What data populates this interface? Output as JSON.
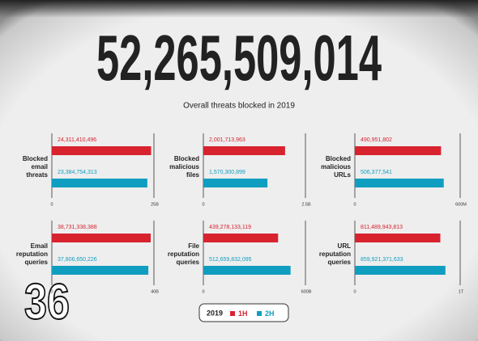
{
  "headline": "52,265,509,014",
  "subtitle": "Overall threats blocked in 2019",
  "legend_title": "2019",
  "page_number": "36",
  "chart_data": [
    {
      "type": "bar",
      "title_lines": [
        "Blocked",
        "email",
        "threats"
      ],
      "series": [
        {
          "name": "1H",
          "color": "#d8232f",
          "values": [
            24311410496
          ],
          "value_labels": [
            "24,311,410,496"
          ]
        },
        {
          "name": "2H",
          "color": "#109ec0",
          "values": [
            23384754313
          ],
          "value_labels": [
            "23,384,754,313"
          ]
        }
      ],
      "xlim": [
        0,
        25000000000
      ],
      "xticks": [
        0,
        {
          "value": 25000000000,
          "label": "25B"
        }
      ]
    },
    {
      "type": "bar",
      "title_lines": [
        "Blocked",
        "malicious",
        "files"
      ],
      "series": [
        {
          "name": "1H",
          "color": "#d8232f",
          "values": [
            2001713963
          ],
          "value_labels": [
            "2,001,713,963"
          ]
        },
        {
          "name": "2H",
          "color": "#109ec0",
          "values": [
            1570300899
          ],
          "value_labels": [
            "1,570,300,899"
          ]
        }
      ],
      "xlim": [
        0,
        2500000000
      ],
      "xticks": [
        0,
        {
          "value": 2500000000,
          "label": "2.5B"
        }
      ]
    },
    {
      "type": "bar",
      "title_lines": [
        "Blocked",
        "malicious",
        "URLs"
      ],
      "series": [
        {
          "name": "1H",
          "color": "#d8232f",
          "values": [
            490951802
          ],
          "value_labels": [
            "490,951,802"
          ]
        },
        {
          "name": "2H",
          "color": "#109ec0",
          "values": [
            506377541
          ],
          "value_labels": [
            "506,377,541"
          ]
        }
      ],
      "xlim": [
        0,
        600000000
      ],
      "xticks": [
        0,
        {
          "value": 600000000,
          "label": "600M"
        }
      ]
    },
    {
      "type": "bar",
      "title_lines": [
        "Email",
        "reputation",
        "queries"
      ],
      "series": [
        {
          "name": "1H",
          "color": "#d8232f",
          "values": [
            38731338388
          ],
          "value_labels": [
            "38,731,338,388"
          ]
        },
        {
          "name": "2H",
          "color": "#109ec0",
          "values": [
            37806650226
          ],
          "value_labels": [
            "37,806,650,226"
          ]
        }
      ],
      "xlim": [
        0,
        40000000000
      ],
      "xticks": [
        0,
        {
          "value": 40000000000,
          "label": "40B"
        }
      ]
    },
    {
      "type": "bar",
      "title_lines": [
        "File",
        "reputation",
        "queries"
      ],
      "series": [
        {
          "name": "1H",
          "color": "#d8232f",
          "values": [
            439278133119
          ],
          "value_labels": [
            "439,278,133,119"
          ]
        },
        {
          "name": "2H",
          "color": "#109ec0",
          "values": [
            512659832095
          ],
          "value_labels": [
            "512,659,832,095"
          ]
        }
      ],
      "xlim": [
        0,
        600000000000
      ],
      "xticks": [
        0,
        {
          "value": 600000000000,
          "label": "600B"
        }
      ]
    },
    {
      "type": "bar",
      "title_lines": [
        "URL",
        "reputation",
        "queries"
      ],
      "series": [
        {
          "name": "1H",
          "color": "#d8232f",
          "values": [
            811489943813
          ],
          "value_labels": [
            "811,489,943,813"
          ]
        },
        {
          "name": "2H",
          "color": "#109ec0",
          "values": [
            859921371633
          ],
          "value_labels": [
            "859,921,371,633"
          ]
        }
      ],
      "xlim": [
        0,
        1000000000000
      ],
      "xticks": [
        0,
        {
          "value": 1000000000000,
          "label": "1T"
        }
      ]
    }
  ]
}
